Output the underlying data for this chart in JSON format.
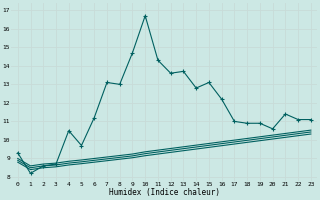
{
  "xlabel": "Humidex (Indice chaleur)",
  "background_color": "#cce8e4",
  "grid_color": "#c8dbd8",
  "line_color": "#006060",
  "xlim": [
    -0.5,
    23.5
  ],
  "ylim": [
    7.8,
    17.4
  ],
  "xticks": [
    0,
    1,
    2,
    3,
    4,
    5,
    6,
    7,
    8,
    9,
    10,
    11,
    12,
    13,
    14,
    15,
    16,
    17,
    18,
    19,
    20,
    21,
    22,
    23
  ],
  "yticks": [
    8,
    9,
    10,
    11,
    12,
    13,
    14,
    15,
    16,
    17
  ],
  "series1_x": [
    0,
    1,
    2,
    3,
    4,
    5,
    6,
    7,
    8,
    9,
    10,
    11,
    12,
    13,
    14,
    15,
    16,
    17,
    18,
    19,
    20,
    21,
    22,
    23
  ],
  "series1_y": [
    9.3,
    8.2,
    8.6,
    8.7,
    10.5,
    9.7,
    11.2,
    13.1,
    13.0,
    14.7,
    16.7,
    14.3,
    13.6,
    13.7,
    12.8,
    13.1,
    12.2,
    11.0,
    10.9,
    10.9,
    10.6,
    11.4,
    11.1,
    11.1
  ],
  "flat1_x": [
    0,
    1,
    2,
    3,
    4,
    5,
    6,
    7,
    8,
    9,
    10,
    11,
    12,
    13,
    14,
    15,
    16,
    17,
    18,
    19,
    20,
    21,
    22,
    23
  ],
  "flat1_y": [
    8.8,
    8.4,
    8.5,
    8.55,
    8.65,
    8.72,
    8.8,
    8.88,
    8.96,
    9.04,
    9.15,
    9.24,
    9.33,
    9.42,
    9.51,
    9.6,
    9.69,
    9.78,
    9.87,
    9.96,
    10.05,
    10.14,
    10.23,
    10.32
  ],
  "flat2_x": [
    0,
    1,
    2,
    3,
    4,
    5,
    6,
    7,
    8,
    9,
    10,
    11,
    12,
    13,
    14,
    15,
    16,
    17,
    18,
    19,
    20,
    21,
    22,
    23
  ],
  "flat2_y": [
    8.9,
    8.5,
    8.6,
    8.65,
    8.75,
    8.82,
    8.9,
    8.98,
    9.06,
    9.14,
    9.26,
    9.35,
    9.44,
    9.53,
    9.62,
    9.71,
    9.8,
    9.89,
    9.98,
    10.07,
    10.16,
    10.25,
    10.34,
    10.43
  ],
  "flat3_x": [
    0,
    1,
    2,
    3,
    4,
    5,
    6,
    7,
    8,
    9,
    10,
    11,
    12,
    13,
    14,
    15,
    16,
    17,
    18,
    19,
    20,
    21,
    22,
    23
  ],
  "flat3_y": [
    9.0,
    8.6,
    8.7,
    8.75,
    8.85,
    8.92,
    9.0,
    9.08,
    9.16,
    9.24,
    9.36,
    9.45,
    9.54,
    9.63,
    9.72,
    9.81,
    9.9,
    9.99,
    10.08,
    10.17,
    10.26,
    10.35,
    10.44,
    10.53
  ]
}
